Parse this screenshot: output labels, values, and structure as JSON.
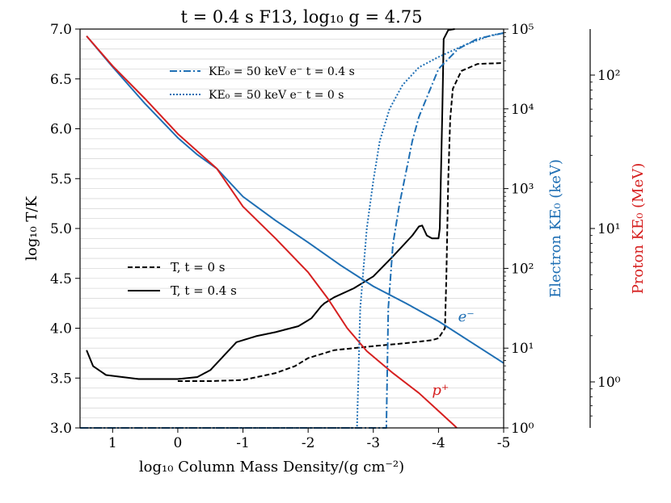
{
  "chart_data": {
    "type": "line",
    "title": "t = 0.4 s F13, log₁₀ g = 4.75",
    "xlabel": "log₁₀ Column Mass Density/(g cm⁻²)",
    "ylabel": "log₁₀ T/K",
    "ylabel_right": "Electron KE₀ (keV)",
    "ylabel_far_right": "Proton KE₀ (MeV)",
    "xlim": [
      1.5,
      -5
    ],
    "ylim": [
      3.0,
      7.0
    ],
    "ylim_right_log10": [
      0,
      5
    ],
    "ylim_far_right_log10": [
      -0.3,
      2.3
    ],
    "x_ticks": [
      1,
      0,
      -1,
      -2,
      -3,
      -4,
      -5
    ],
    "x_tick_labels": [
      "1",
      "0",
      "-1",
      "-2",
      "-3",
      "-4",
      "-5"
    ],
    "y_ticks": [
      3.0,
      3.5,
      4.0,
      4.5,
      5.0,
      5.5,
      6.0,
      6.5,
      7.0
    ],
    "y_tick_labels": [
      "3.0",
      "3.5",
      "4.0",
      "4.5",
      "5.0",
      "5.5",
      "6.0",
      "6.5",
      "7.0"
    ],
    "right_ticks_log10": [
      0,
      1,
      2,
      3,
      4,
      5
    ],
    "right_tick_labels": [
      "10⁰",
      "10¹",
      "10²",
      "10³",
      "10⁴",
      "10⁵"
    ],
    "far_right_ticks_log10": [
      0,
      1,
      2
    ],
    "far_right_tick_labels": [
      "10⁰",
      "10¹",
      "10²"
    ],
    "grid": "horizontal, fine",
    "legend_top": [
      {
        "label": "KE₀ = 50 keV e⁻  t = 0.4 s",
        "style": "dashdot",
        "color": "#1f6fb4"
      },
      {
        "label": "KE₀ = 50 keV e⁻  t = 0 s",
        "style": "dotted",
        "color": "#1f6fb4"
      }
    ],
    "legend_mid": [
      {
        "label": "T, t = 0 s",
        "style": "dashed",
        "color": "#000000"
      },
      {
        "label": "T, t = 0.4 s",
        "style": "solid",
        "color": "#000000"
      }
    ],
    "annotations": [
      {
        "text": "e⁻",
        "x": -4.3,
        "y": 4.07,
        "color": "#1f6fb4"
      },
      {
        "text": "p⁺",
        "x": -3.9,
        "y": 3.33,
        "color": "#d62020"
      }
    ],
    "series": [
      {
        "name": "T, t = 0.4 s",
        "axis": "left",
        "color": "#000000",
        "style": "solid",
        "points": [
          [
            1.4,
            3.78
          ],
          [
            1.3,
            3.62
          ],
          [
            1.1,
            3.53
          ],
          [
            0.6,
            3.49
          ],
          [
            0,
            3.49
          ],
          [
            -0.3,
            3.51
          ],
          [
            -0.5,
            3.58
          ],
          [
            -0.7,
            3.72
          ],
          [
            -0.9,
            3.86
          ],
          [
            -1.2,
            3.92
          ],
          [
            -1.5,
            3.96
          ],
          [
            -1.85,
            4.02
          ],
          [
            -2.05,
            4.1
          ],
          [
            -2.2,
            4.22
          ],
          [
            -2.25,
            4.25
          ],
          [
            -2.4,
            4.31
          ],
          [
            -2.7,
            4.4
          ],
          [
            -3.0,
            4.52
          ],
          [
            -3.3,
            4.72
          ],
          [
            -3.6,
            4.93
          ],
          [
            -3.7,
            5.02
          ],
          [
            -3.75,
            5.03
          ],
          [
            -3.82,
            4.93
          ],
          [
            -3.9,
            4.9
          ],
          [
            -4.0,
            4.9
          ],
          [
            -4.02,
            5.0
          ],
          [
            -4.06,
            6.2
          ],
          [
            -4.08,
            6.9
          ],
          [
            -4.15,
            6.99
          ],
          [
            -4.25,
            7.0
          ]
        ]
      },
      {
        "name": "T, t = 0 s",
        "axis": "left",
        "color": "#000000",
        "style": "dashed",
        "points": [
          [
            0,
            3.47
          ],
          [
            -0.5,
            3.47
          ],
          [
            -1.0,
            3.48
          ],
          [
            -1.5,
            3.55
          ],
          [
            -1.8,
            3.62
          ],
          [
            -2.0,
            3.7
          ],
          [
            -2.4,
            3.78
          ],
          [
            -3.0,
            3.82
          ],
          [
            -3.5,
            3.85
          ],
          [
            -3.9,
            3.88
          ],
          [
            -4.0,
            3.9
          ],
          [
            -4.1,
            4.0
          ],
          [
            -4.12,
            4.5
          ],
          [
            -4.15,
            5.5
          ],
          [
            -4.18,
            6.1
          ],
          [
            -4.22,
            6.4
          ],
          [
            -4.35,
            6.58
          ],
          [
            -4.6,
            6.65
          ],
          [
            -5.0,
            6.66
          ]
        ]
      },
      {
        "name": "e⁻ KE₀",
        "axis": "left",
        "color": "#1f6fb4",
        "style": "solid",
        "points": [
          [
            1.4,
            6.93
          ],
          [
            1.0,
            6.62
          ],
          [
            0.5,
            6.25
          ],
          [
            0,
            5.91
          ],
          [
            -0.3,
            5.74
          ],
          [
            -0.6,
            5.6
          ],
          [
            -1.0,
            5.32
          ],
          [
            -1.5,
            5.08
          ],
          [
            -2.0,
            4.86
          ],
          [
            -2.5,
            4.63
          ],
          [
            -3.0,
            4.42
          ],
          [
            -3.5,
            4.25
          ],
          [
            -4.0,
            4.07
          ],
          [
            -4.5,
            3.86
          ],
          [
            -5.0,
            3.65
          ]
        ]
      },
      {
        "name": "p⁺ KE₀",
        "axis": "left",
        "color": "#d62020",
        "style": "solid",
        "points": [
          [
            1.4,
            6.93
          ],
          [
            1.0,
            6.63
          ],
          [
            0.5,
            6.3
          ],
          [
            0,
            5.95
          ],
          [
            -0.6,
            5.6
          ],
          [
            -1.0,
            5.22
          ],
          [
            -1.5,
            4.9
          ],
          [
            -2.0,
            4.56
          ],
          [
            -2.3,
            4.3
          ],
          [
            -2.6,
            4.0
          ],
          [
            -2.9,
            3.77
          ],
          [
            -3.3,
            3.55
          ],
          [
            -3.7,
            3.35
          ],
          [
            -4.0,
            3.17
          ],
          [
            -4.25,
            3.02
          ],
          [
            -4.28,
            3.0
          ]
        ]
      },
      {
        "name": "KE₀ = 50 keV e⁻  t = 0.4 s",
        "axis": "right",
        "color": "#1f6fb4",
        "style": "dashdot",
        "points": [
          [
            1.5,
            0
          ],
          [
            -3.2,
            0
          ],
          [
            -3.23,
            1.5
          ],
          [
            -3.3,
            2.3
          ],
          [
            -3.4,
            2.8
          ],
          [
            -3.5,
            3.2
          ],
          [
            -3.6,
            3.6
          ],
          [
            -3.7,
            3.9
          ],
          [
            -3.85,
            4.2
          ],
          [
            -4.0,
            4.5
          ],
          [
            -4.3,
            4.75
          ],
          [
            -4.6,
            4.88
          ],
          [
            -5.0,
            4.95
          ]
        ]
      },
      {
        "name": "KE₀ = 50 keV e⁻  t = 0 s",
        "axis": "right",
        "color": "#1f6fb4",
        "style": "dotted",
        "points": [
          [
            1.5,
            0
          ],
          [
            -2.75,
            0
          ],
          [
            -2.8,
            1.5
          ],
          [
            -2.9,
            2.5
          ],
          [
            -3.0,
            3.1
          ],
          [
            -3.1,
            3.6
          ],
          [
            -3.25,
            4.0
          ],
          [
            -3.45,
            4.3
          ],
          [
            -3.7,
            4.52
          ],
          [
            -4.0,
            4.65
          ],
          [
            -4.4,
            4.8
          ],
          [
            -4.8,
            4.92
          ],
          [
            -5.0,
            4.95
          ]
        ]
      }
    ]
  }
}
